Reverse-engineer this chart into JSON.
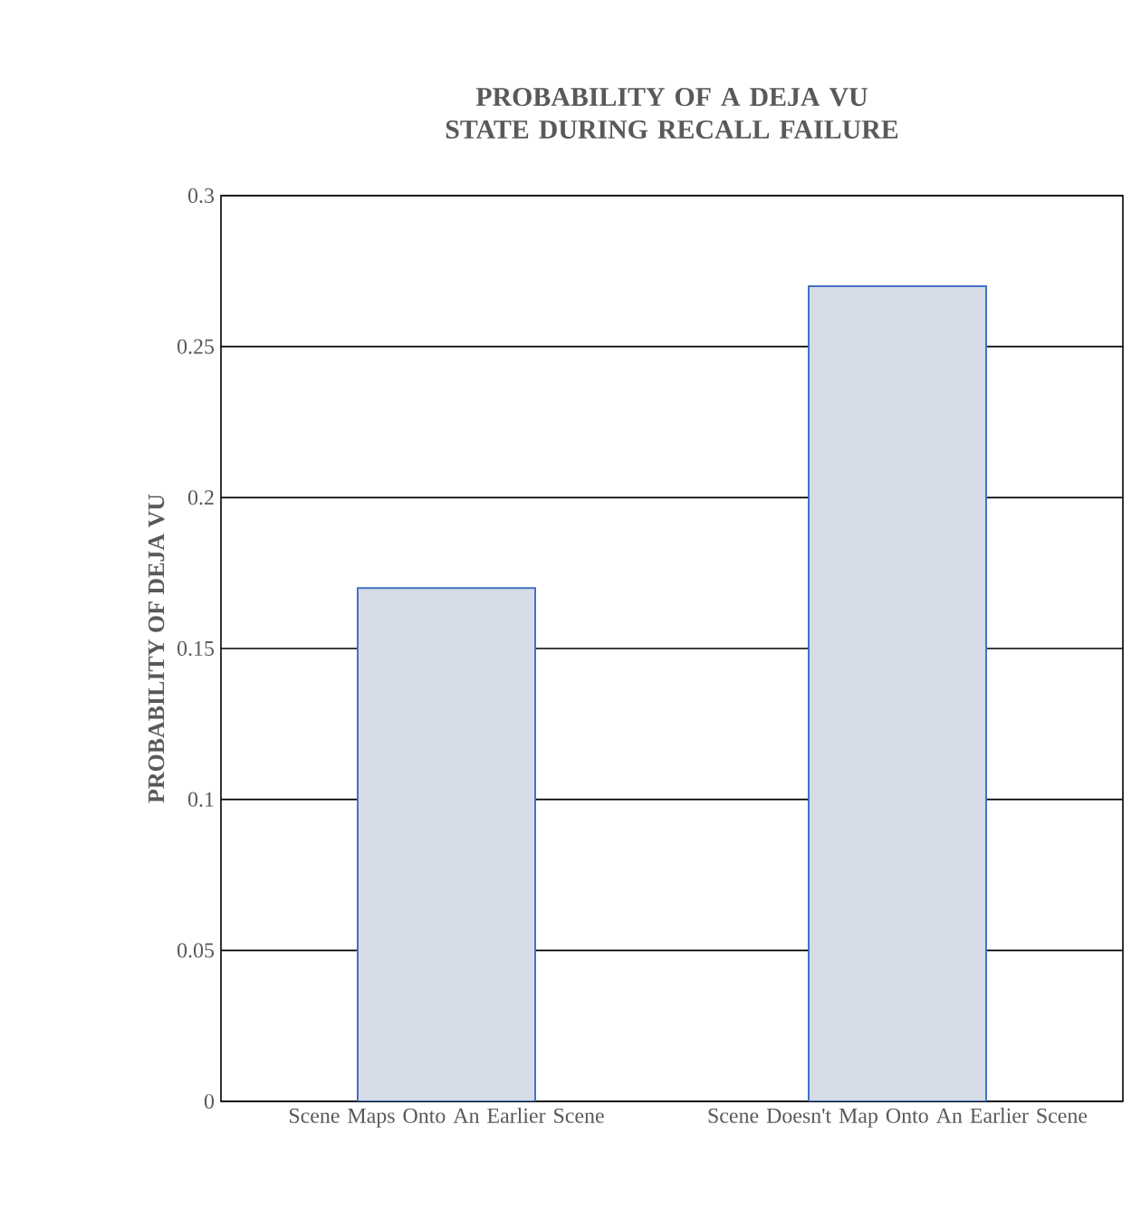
{
  "chart_data": {
    "type": "bar",
    "title": "PROBABILITY OF A DEJA VU STATE DURING RECALL FAILURE",
    "ylabel": "PROBABILITY OF DEJA VU",
    "categories": [
      "Scene Maps Onto An Earlier Scene",
      "Scene Doesn't Map Onto An Earlier Scene"
    ],
    "values": [
      0.17,
      0.27
    ],
    "color": "#d6dce5",
    "ylim": [
      0,
      0.3
    ],
    "yticks": [
      0,
      0.05,
      0.1,
      0.15,
      0.2,
      0.25,
      0.3
    ],
    "grid": "y"
  }
}
